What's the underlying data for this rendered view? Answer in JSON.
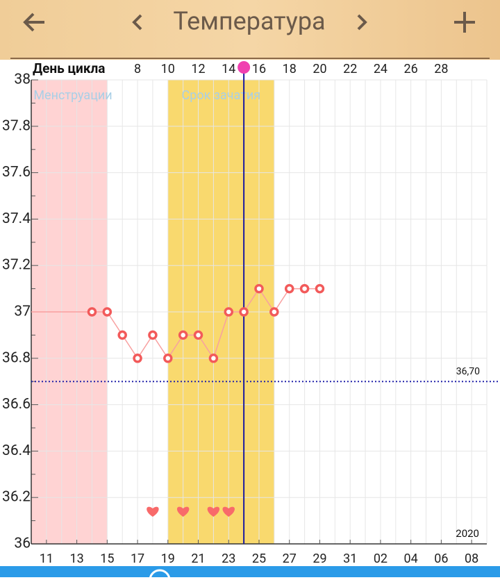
{
  "header": {
    "title": "Температура"
  },
  "chart_data": {
    "type": "line",
    "top_axis_label": "День цикла",
    "xlim": [
      1,
      31
    ],
    "top_xticks": [
      8,
      10,
      12,
      14,
      16,
      18,
      20,
      22,
      24,
      26,
      28
    ],
    "xticks": [
      {
        "value": 2,
        "label": "11"
      },
      {
        "value": 4,
        "label": "13"
      },
      {
        "value": 6,
        "label": "15"
      },
      {
        "value": 8,
        "label": "17"
      },
      {
        "value": 10,
        "label": "19"
      },
      {
        "value": 12,
        "label": "21"
      },
      {
        "value": 14,
        "label": "23"
      },
      {
        "value": 16,
        "label": "25"
      },
      {
        "value": 18,
        "label": "27"
      },
      {
        "value": 20,
        "label": "29"
      },
      {
        "value": 22,
        "label": "31"
      },
      {
        "value": 24,
        "label": "02"
      },
      {
        "value": 26,
        "label": "04"
      },
      {
        "value": 28,
        "label": "06"
      },
      {
        "value": 30,
        "label": "08"
      }
    ],
    "year_label": "2020",
    "ylim": [
      36,
      38
    ],
    "yticks": [
      36,
      36.2,
      36.4,
      36.6,
      36.8,
      37,
      37.2,
      37.4,
      37.6,
      37.8,
      38
    ],
    "grid": true,
    "zones": [
      {
        "name": "Менструации",
        "range": [
          1,
          6
        ],
        "color": "#ffd3d3",
        "label_color": "#a9cfe6"
      },
      {
        "name": "Срок зачатия",
        "range": [
          10,
          17
        ],
        "color": "#f9d96e",
        "label_color": "#a9cfe6"
      }
    ],
    "today": 15,
    "coverline": {
      "value": 36.7,
      "label": "36,70",
      "color": "#2222aa"
    },
    "series": [
      {
        "color": "#f25a5a",
        "x": [
          5,
          6,
          7,
          8,
          9,
          10,
          11,
          12,
          13,
          14,
          15,
          16,
          17,
          18,
          19,
          20
        ],
        "values": [
          37,
          37,
          36.9,
          36.8,
          36.9,
          36.8,
          36.9,
          36.9,
          36.8,
          37,
          37,
          37.1,
          37,
          37.1,
          37.1,
          37.1
        ]
      }
    ],
    "hearts": [
      9,
      11,
      13,
      14
    ]
  }
}
